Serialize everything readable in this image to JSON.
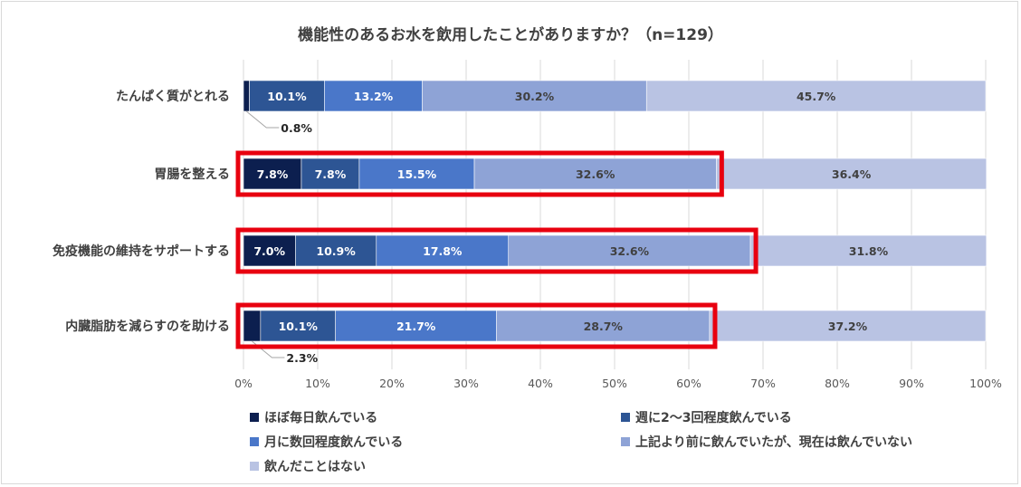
{
  "chart_data": {
    "type": "bar",
    "orientation": "horizontal",
    "stacked": true,
    "title": "機能性のあるお水を飲用したことがありますか？（n=129）",
    "categories": [
      "たんぱく質がとれる",
      "胃腸を整える",
      "免疫機能の維持をサポートする",
      "内臓脂肪を減らすのを助ける"
    ],
    "series": [
      {
        "name": "ほぼ毎日飲んでいる",
        "color": "#0c1f4f",
        "values": [
          0.8,
          7.8,
          7.0,
          2.3
        ],
        "labels": [
          "0.8%",
          "7.8%",
          "7.0%",
          "2.3%"
        ]
      },
      {
        "name": "週に2～3回程度飲んでいる",
        "color": "#2d5594",
        "values": [
          10.1,
          7.8,
          10.9,
          10.1
        ],
        "labels": [
          "10.1%",
          "7.8%",
          "10.9%",
          "10.1%"
        ]
      },
      {
        "name": "月に数回程度飲んでいる",
        "color": "#4a77c9",
        "values": [
          13.2,
          15.5,
          17.8,
          21.7
        ],
        "labels": [
          "13.2%",
          "15.5%",
          "17.8%",
          "21.7%"
        ]
      },
      {
        "name": "上記より前に飲んでいたが、現在は飲んでいない",
        "color": "#8ea3d6",
        "values": [
          30.2,
          32.6,
          32.6,
          28.7
        ],
        "labels": [
          "30.2%",
          "32.6%",
          "32.6%",
          "28.7%"
        ]
      },
      {
        "name": "飲んだことはない",
        "color": "#b9c3e3",
        "values": [
          45.7,
          36.4,
          31.8,
          37.2
        ],
        "labels": [
          "45.7%",
          "36.4%",
          "31.8%",
          "37.2%"
        ]
      }
    ],
    "xlim": [
      0,
      100
    ],
    "x_ticks": [
      "0%",
      "10%",
      "20%",
      "30%",
      "40%",
      "50%",
      "60%",
      "70%",
      "80%",
      "90%",
      "100%"
    ],
    "grid": "vertical",
    "legend": "bottom",
    "highlights": {
      "color": "#e8000f",
      "categories": [
        "胃腸を整える",
        "免疫機能の維持をサポートする",
        "内臓脂肪を減らすのを助ける"
      ],
      "through_series": 3
    }
  }
}
